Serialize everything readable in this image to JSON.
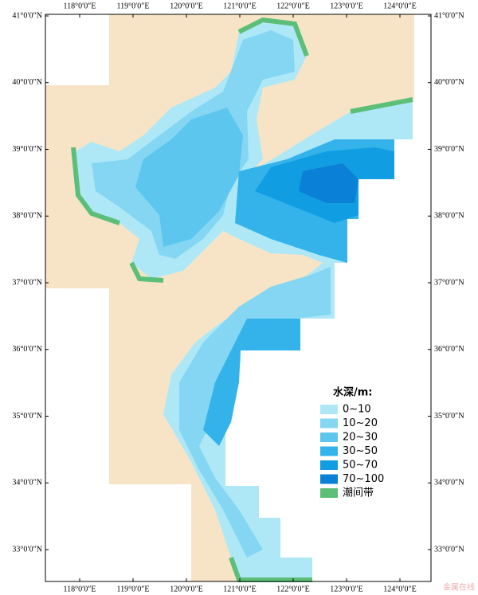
{
  "map": {
    "lon_labels": [
      "118°0′0″E",
      "119°0′0″E",
      "120°0′0″E",
      "121°0′0″E",
      "122°0′0″E",
      "123°0′0″E",
      "124°0′0″E"
    ],
    "lat_labels": [
      "41°0′0″N",
      "40°0′0″N",
      "39°0′0″N",
      "38°0′0″N",
      "37°0′0″N",
      "36°0′0″N",
      "35°0′0″N",
      "34°0′0″N",
      "33°0′0″N"
    ],
    "legend": {
      "title": "水深/m:",
      "items": [
        {
          "label": "0~10",
          "color": "#aee8f7"
        },
        {
          "label": "10~20",
          "color": "#84d6f2"
        },
        {
          "label": "20~30",
          "color": "#5cc6ef"
        },
        {
          "label": "30~50",
          "color": "#33b3ea"
        },
        {
          "label": "50~70",
          "color": "#119de2"
        },
        {
          "label": "70~100",
          "color": "#0a80d6"
        },
        {
          "label": "潮间带",
          "color": "#5cbf78"
        }
      ]
    },
    "watermark": "金属在线"
  }
}
